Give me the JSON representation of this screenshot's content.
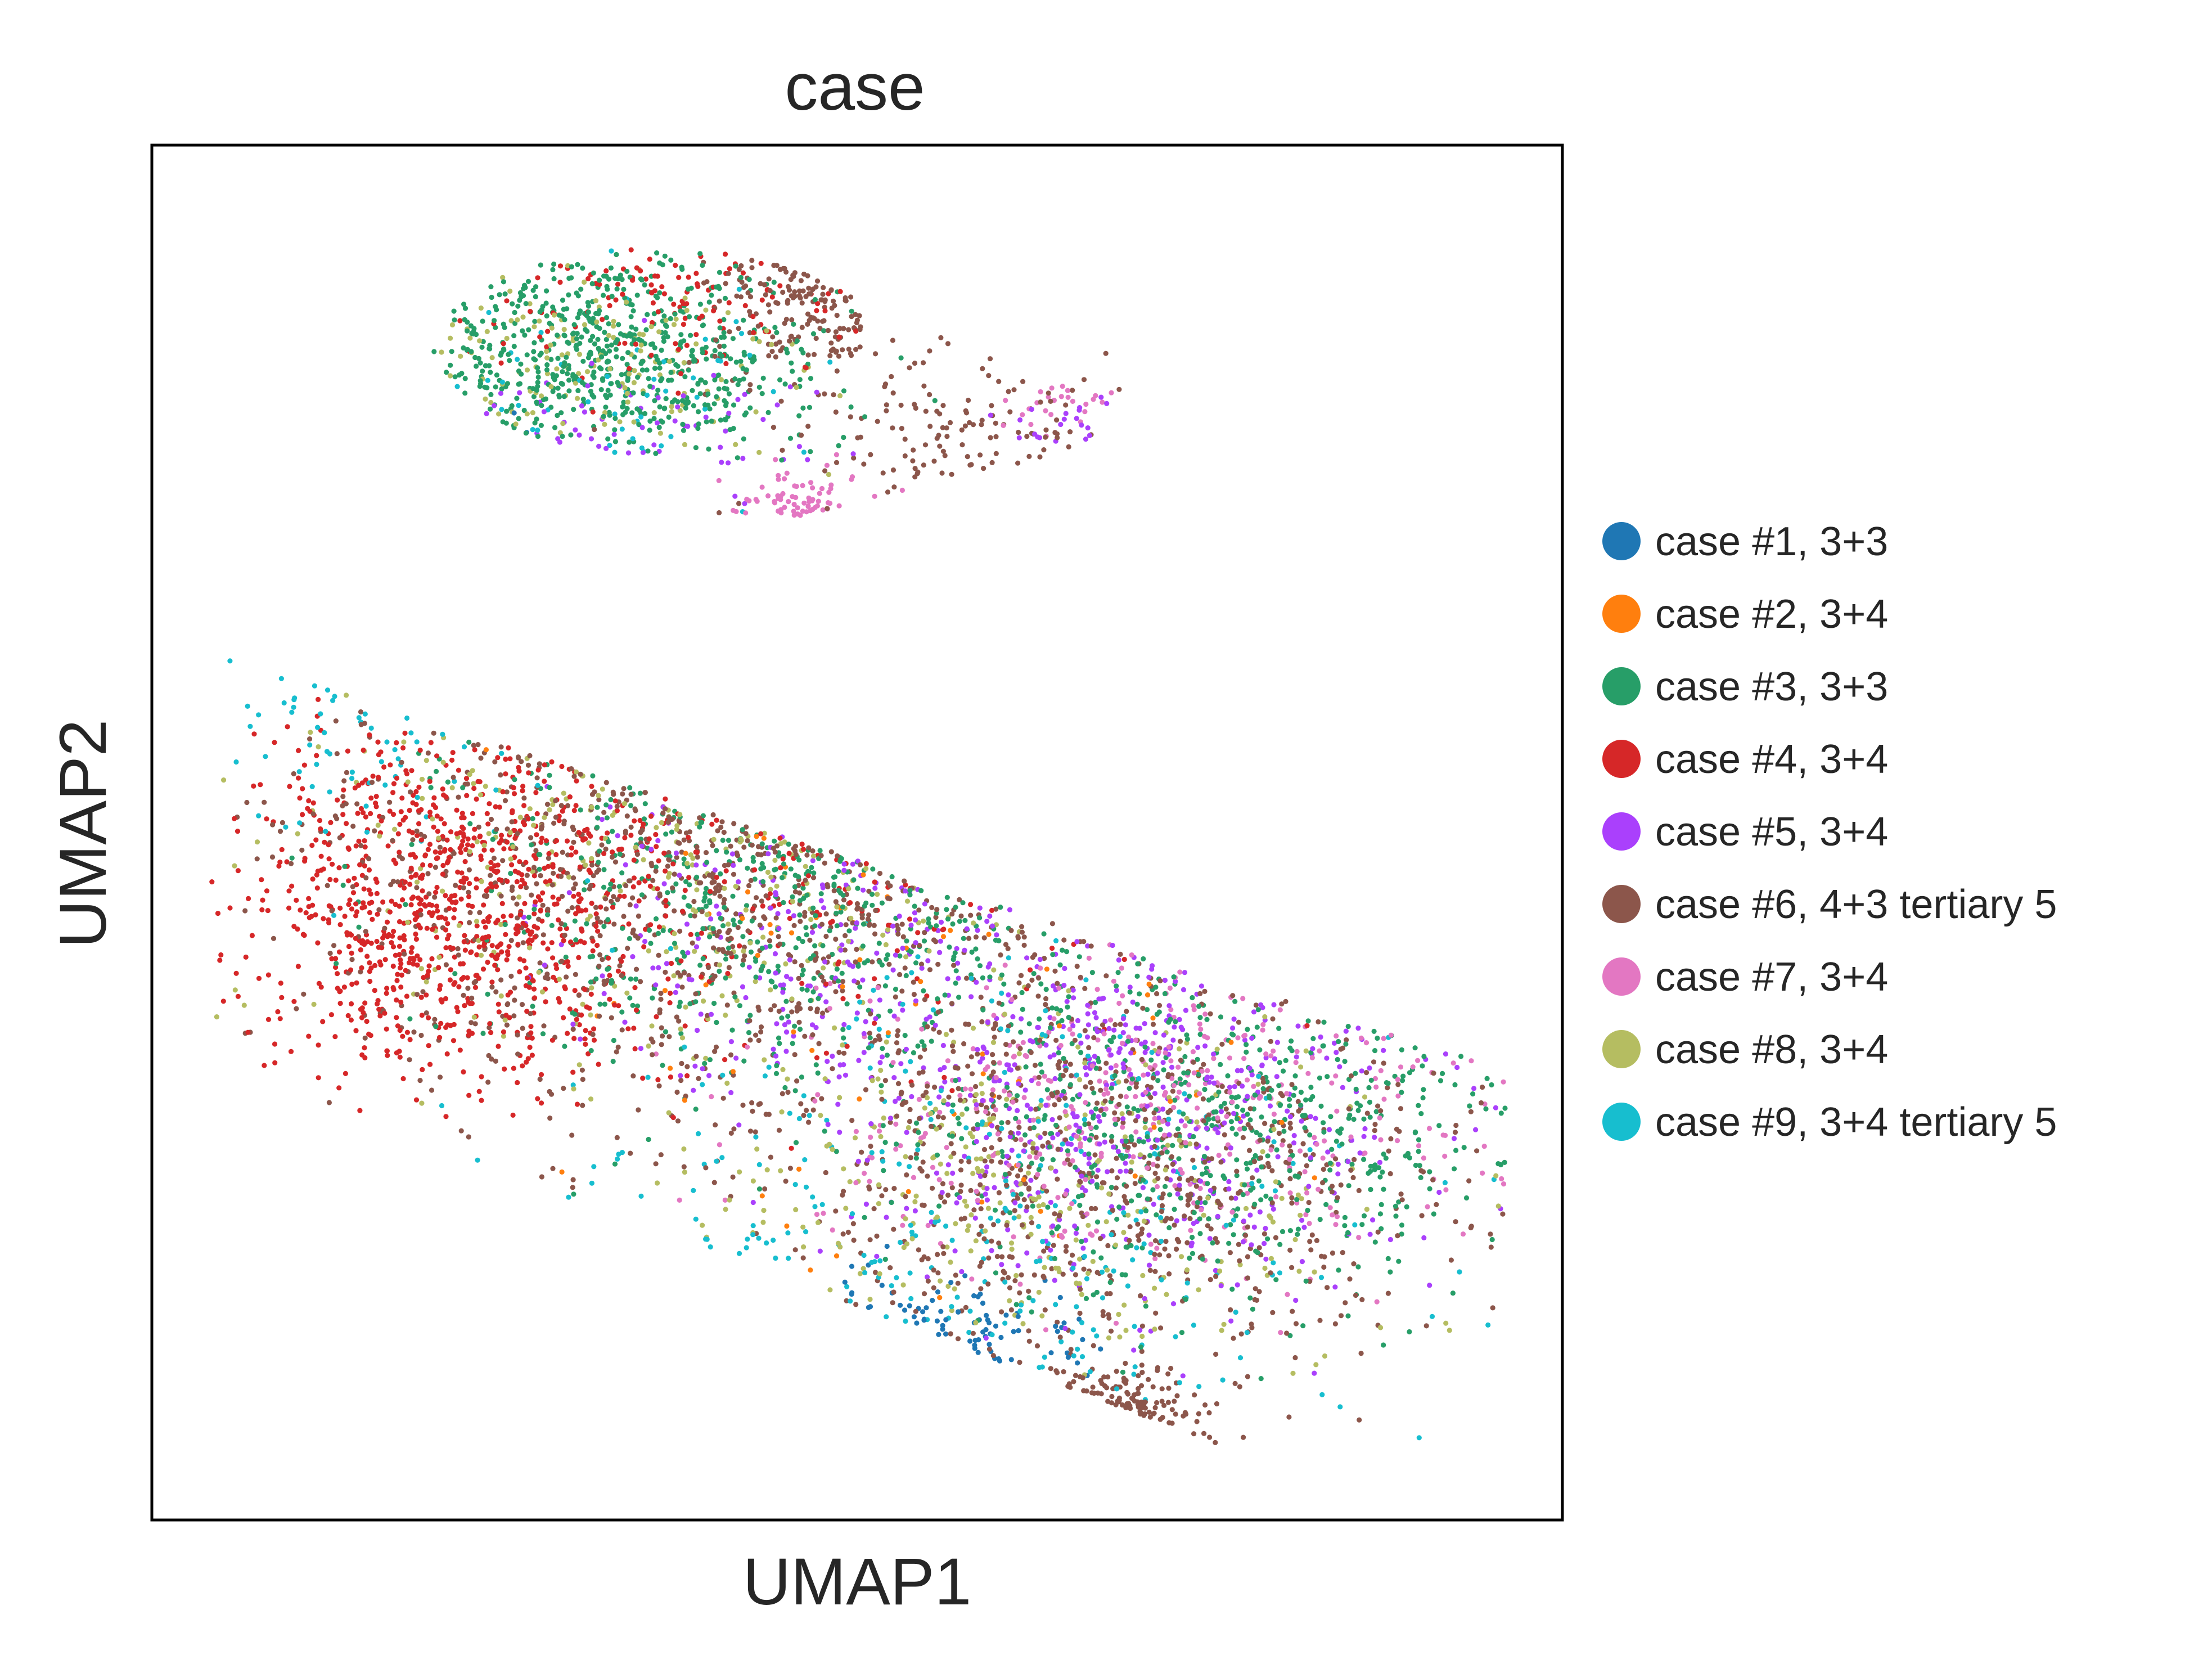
{
  "chart_data": {
    "type": "scatter",
    "title": "case",
    "xlabel": "UMAP1",
    "ylabel": "UMAP2",
    "xlim": [
      0,
      100
    ],
    "ylim": [
      0,
      100
    ],
    "ticks": "none",
    "grid": false,
    "legend_position": "right",
    "series": [
      {
        "name": "case #1, 3+3",
        "color": "#1f77b4"
      },
      {
        "name": "case #2, 3+4",
        "color": "#ff7f0e"
      },
      {
        "name": "case #3, 3+3",
        "color": "#279e68"
      },
      {
        "name": "case #4, 3+4",
        "color": "#d62728"
      },
      {
        "name": "case #5, 3+4",
        "color": "#aa40fc"
      },
      {
        "name": "case #6, 4+3 tertiary 5",
        "color": "#8c564b"
      },
      {
        "name": "case #7, 3+4",
        "color": "#e377c2"
      },
      {
        "name": "case #8, 3+4",
        "color": "#b5bd61"
      },
      {
        "name": "case #9, 3+4 tertiary 5",
        "color": "#17becf"
      }
    ],
    "clusters": [
      {
        "series": 2,
        "cx": 32,
        "cy": 85,
        "sx": 8,
        "sy": 4,
        "n": 650
      },
      {
        "series": 3,
        "cx": 38,
        "cy": 89,
        "sx": 7,
        "sy": 3,
        "n": 120
      },
      {
        "series": 5,
        "cx": 48,
        "cy": 91,
        "sx": 4,
        "sy": 4,
        "n": 180
      },
      {
        "series": 6,
        "cx": 46,
        "cy": 72,
        "sx": 3,
        "sy": 2,
        "n": 70
      },
      {
        "series": 7,
        "cx": 30,
        "cy": 84,
        "sx": 8,
        "sy": 4,
        "n": 140
      },
      {
        "series": 0,
        "cx": 20,
        "cy": 75,
        "sx": 3,
        "sy": 2,
        "n": 40
      },
      {
        "series": 4,
        "cx": 34,
        "cy": 79,
        "sx": 6,
        "sy": 3,
        "n": 60
      },
      {
        "series": 8,
        "cx": 33,
        "cy": 82,
        "sx": 7,
        "sy": 4,
        "n": 50
      },
      {
        "series": 5,
        "cx": 58,
        "cy": 78,
        "sx": 5,
        "sy": 3,
        "n": 110
      },
      {
        "series": 6,
        "cx": 64,
        "cy": 81,
        "sx": 2,
        "sy": 1,
        "n": 25
      },
      {
        "series": 4,
        "cx": 65,
        "cy": 80,
        "sx": 2,
        "sy": 1,
        "n": 20
      },
      {
        "series": 3,
        "cx": 21,
        "cy": 45,
        "sx": 7,
        "sy": 6,
        "n": 900
      },
      {
        "series": 5,
        "cx": 42,
        "cy": 48,
        "sx": 16,
        "sy": 10,
        "n": 900
      },
      {
        "series": 2,
        "cx": 45,
        "cy": 46,
        "sx": 12,
        "sy": 7,
        "n": 500
      },
      {
        "series": 7,
        "cx": 38,
        "cy": 50,
        "sx": 14,
        "sy": 8,
        "n": 250
      },
      {
        "series": 4,
        "cx": 47,
        "cy": 44,
        "sx": 10,
        "sy": 6,
        "n": 200
      },
      {
        "series": 3,
        "cx": 42,
        "cy": 50,
        "sx": 12,
        "sy": 8,
        "n": 200
      },
      {
        "series": 8,
        "cx": 15,
        "cy": 58,
        "sx": 5,
        "sy": 5,
        "n": 60
      },
      {
        "series": 2,
        "cx": 75,
        "cy": 28,
        "sx": 12,
        "sy": 6,
        "n": 600
      },
      {
        "series": 4,
        "cx": 68,
        "cy": 30,
        "sx": 11,
        "sy": 7,
        "n": 500
      },
      {
        "series": 6,
        "cx": 70,
        "cy": 30,
        "sx": 12,
        "sy": 6,
        "n": 400
      },
      {
        "series": 5,
        "cx": 68,
        "cy": 25,
        "sx": 13,
        "sy": 7,
        "n": 700
      },
      {
        "series": 7,
        "cx": 63,
        "cy": 24,
        "sx": 12,
        "sy": 7,
        "n": 300
      },
      {
        "series": 0,
        "cx": 57,
        "cy": 12,
        "sx": 5,
        "sy": 3,
        "n": 80
      },
      {
        "series": 5,
        "cx": 67,
        "cy": 6,
        "sx": 3,
        "sy": 2,
        "n": 120
      },
      {
        "series": 8,
        "cx": 60,
        "cy": 25,
        "sx": 14,
        "sy": 8,
        "n": 200
      },
      {
        "series": 1,
        "cx": 55,
        "cy": 40,
        "sx": 15,
        "sy": 15,
        "n": 70
      },
      {
        "series": 8,
        "cx": 30,
        "cy": 5,
        "sx": 20,
        "sy": 10,
        "n": 80
      }
    ]
  }
}
